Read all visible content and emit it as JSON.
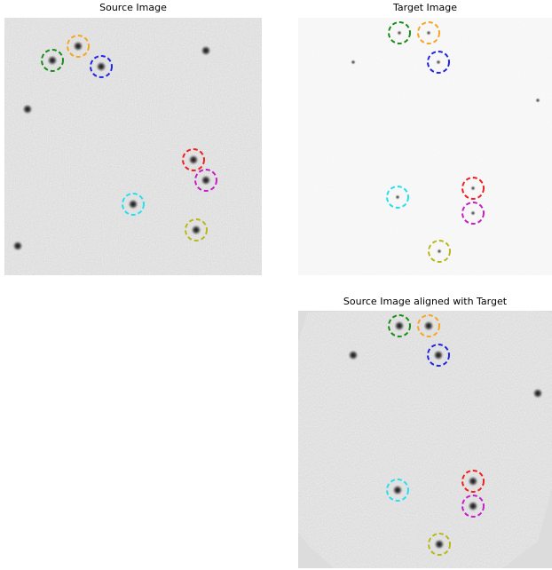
{
  "panels": {
    "source": {
      "title": "Source Image"
    },
    "target": {
      "title": "Target Image"
    },
    "aligned": {
      "title": "Source Image aligned with Target"
    }
  },
  "circle_colors": {
    "green": "#1a8c1a",
    "orange": "#f5a623",
    "blue": "#1f24e6",
    "red": "#f01f1f",
    "magenta": "#c51ec5",
    "cyan": "#22e0ee",
    "olive": "#b8b81a"
  },
  "colors": {
    "page_background": "#ffffff",
    "source_noise_background": "#d9d9d9",
    "target_background": "#f4f4f4",
    "aligned_frame_background": "#dcdcdc",
    "star": "#111111"
  }
}
